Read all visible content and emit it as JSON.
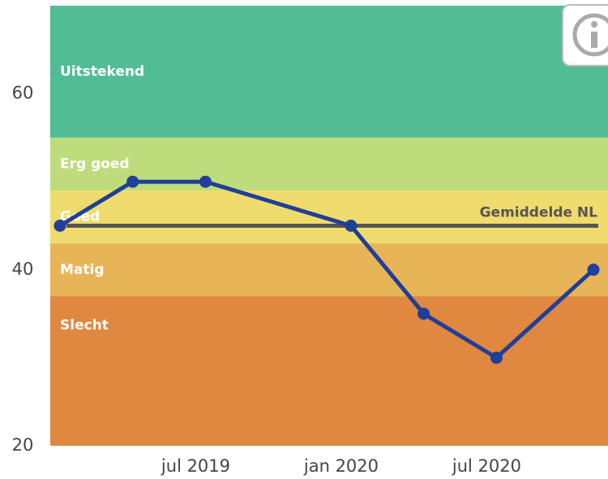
{
  "chart_data": {
    "type": "line",
    "x": [
      "2019-01",
      "2019-04",
      "2019-07",
      "2020-01",
      "2020-04",
      "2020-07",
      "2020-11"
    ],
    "series": [
      {
        "name": null,
        "color": "#1f3f99",
        "values": [
          45,
          50,
          50,
          45,
          35,
          30,
          40
        ]
      }
    ],
    "xlim": [
      "2019-01",
      "2020-12"
    ],
    "xticks": [
      {
        "value": "2019-07",
        "label": "jul 2019"
      },
      {
        "value": "2020-01",
        "label": "jan 2020"
      },
      {
        "value": "2020-07",
        "label": "jul 2020"
      }
    ],
    "ylim": [
      20,
      70
    ],
    "yticks": [
      20,
      40,
      60
    ],
    "bands": [
      {
        "label": "Uitstekend",
        "from": 55,
        "to": 70,
        "color": "#52bc94"
      },
      {
        "label": "Erg goed",
        "from": 49,
        "to": 55,
        "color": "#bfdc7c"
      },
      {
        "label": "Goed",
        "from": 43,
        "to": 49,
        "color": "#f0dc6c"
      },
      {
        "label": "Matig",
        "from": 37,
        "to": 43,
        "color": "#e8b458"
      },
      {
        "label": "Slecht",
        "from": 20,
        "to": 37,
        "color": "#e08840"
      }
    ],
    "reference_line": {
      "label": "Gemiddelde NL",
      "value": 45,
      "color": "#555555"
    }
  }
}
